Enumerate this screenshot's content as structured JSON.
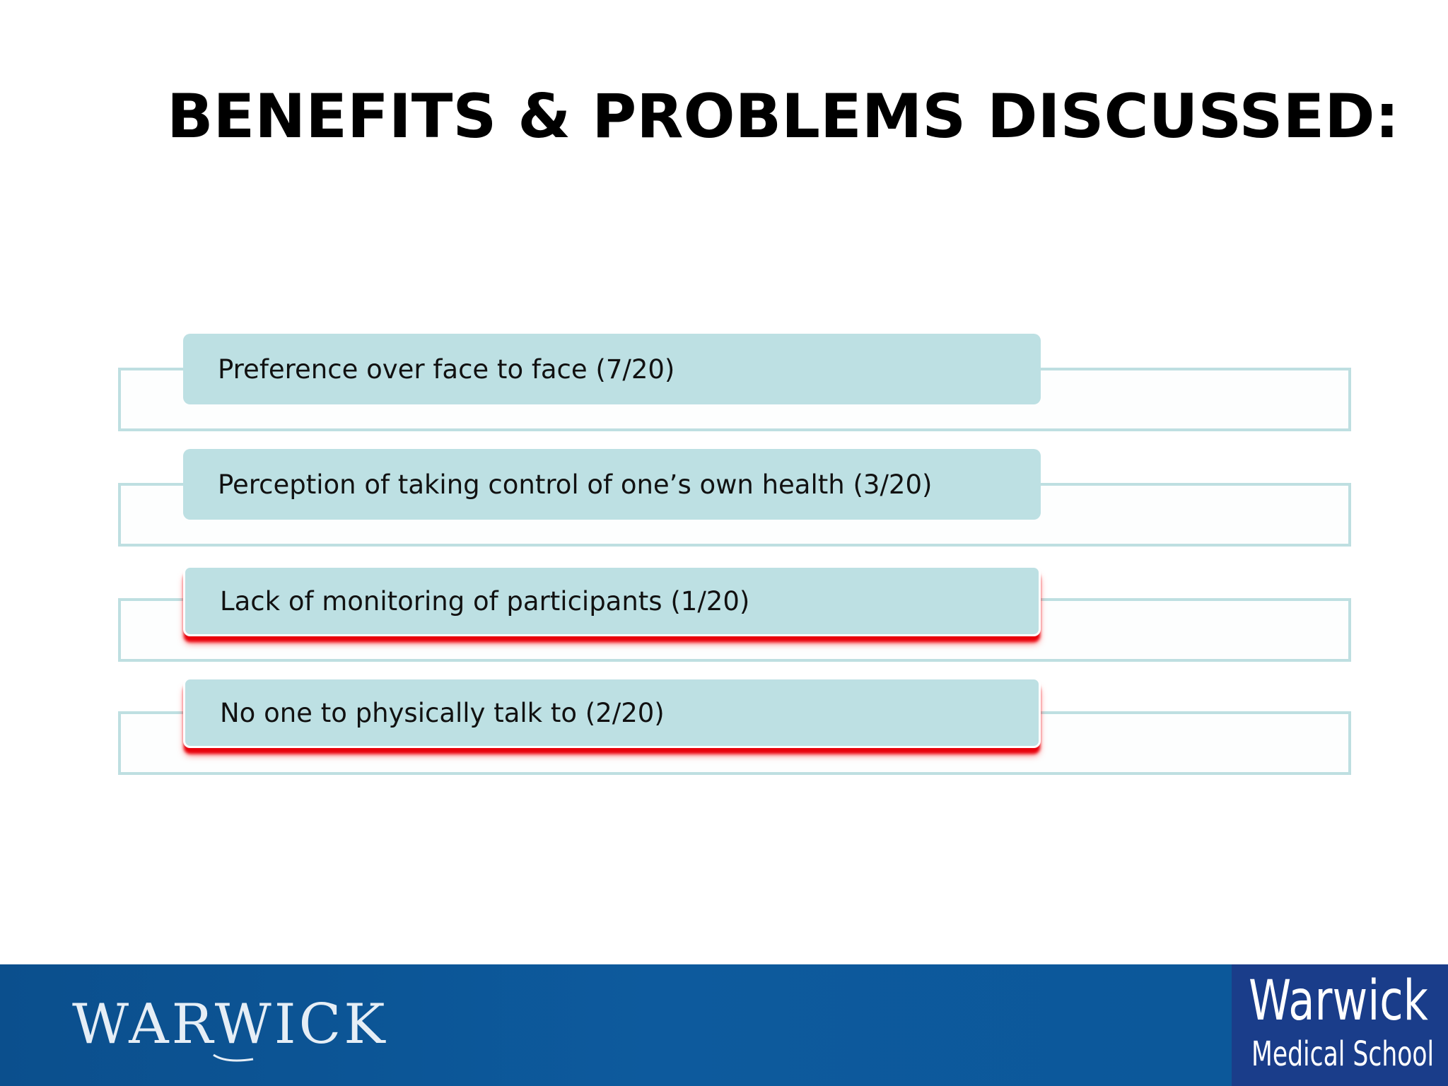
{
  "slide": {
    "title": "BENEFITS & PROBLEMS DISCUSSED:",
    "items": [
      {
        "label": "Preference over face to face (7/20)",
        "kind": "benefit"
      },
      {
        "label": "Perception of taking control of one’s own health (3/20)",
        "kind": "benefit"
      },
      {
        "label": "Lack of monitoring of participants (1/20)",
        "kind": "problem"
      },
      {
        "label": "No one to physically talk to (2/20)",
        "kind": "problem"
      }
    ]
  },
  "footer": {
    "logo_text": "WARWICK",
    "badge_name": "Warwick",
    "badge_sub": "Medical School"
  },
  "colors": {
    "pill": "#bde0e3",
    "frame": "#bedfe1",
    "problem_accent": "#e8000b",
    "footer": "#0d5a9d",
    "badge": "#1a3d8a"
  }
}
